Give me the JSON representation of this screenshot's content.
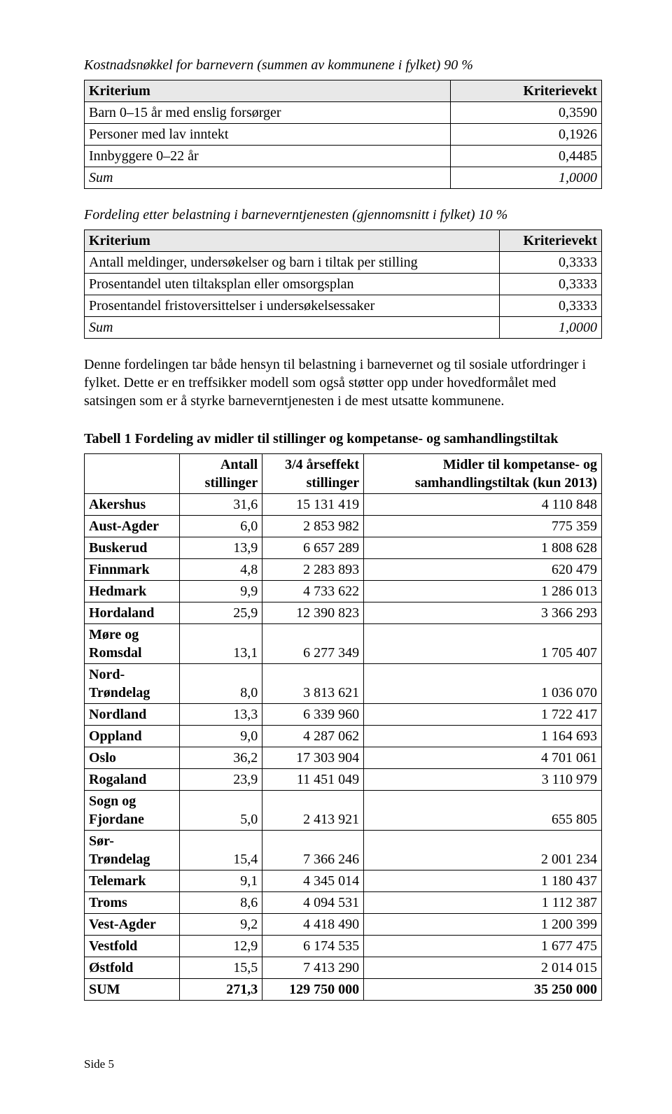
{
  "section1": {
    "heading": "Kostnadsnøkkel for barnevern (summen av kommunene i fylket) 90 %",
    "header_col1": "Kriterium",
    "header_col2": "Kriterievekt",
    "rows": [
      {
        "label": "Barn 0–15 år med enslig forsørger",
        "value": "0,3590"
      },
      {
        "label": "Personer med lav inntekt",
        "value": "0,1926"
      },
      {
        "label": "Innbyggere 0–22 år",
        "value": "0,4485"
      }
    ],
    "sum_label": "Sum",
    "sum_value": "1,0000"
  },
  "section2": {
    "heading": "Fordeling etter belastning i barneverntjenesten (gjennomsnitt i fylket) 10 %",
    "header_col1": "Kriterium",
    "header_col2": "Kriterievekt",
    "rows": [
      {
        "label": "Antall meldinger, undersøkelser og barn i tiltak per stilling",
        "value": "0,3333"
      },
      {
        "label": "Prosentandel uten tiltaksplan eller omsorgsplan",
        "value": "0,3333"
      },
      {
        "label": "Prosentandel fristoversittelser i undersøkelsessaker",
        "value": "0,3333"
      }
    ],
    "sum_label": "Sum",
    "sum_value": "1,0000"
  },
  "paragraph": "Denne fordelingen tar både hensyn til belastning i barnevernet og til sosiale utfordringer i fylket. Dette er en treffsikker modell som også støtter opp under hovedformålet med satsingen som er å styrke barneverntjenesten i de mest utsatte kommunene.",
  "table3": {
    "caption": "Tabell 1 Fordeling av midler til stillinger og kompetanse- og samhandlingstiltak",
    "headers": {
      "blank": "",
      "col1": "Antall stillinger",
      "col2": "3/4 årseffekt stillinger",
      "col3": "Midler til kompetanse- og samhandlingstiltak (kun 2013)"
    },
    "rows": [
      {
        "name": "Akershus",
        "v1": "31,6",
        "v2": "15 131 419",
        "v3": "4 110 848"
      },
      {
        "name": "Aust-Agder",
        "v1": "6,0",
        "v2": "2 853 982",
        "v3": "775 359"
      },
      {
        "name": "Buskerud",
        "v1": "13,9",
        "v2": "6 657 289",
        "v3": "1 808 628"
      },
      {
        "name": "Finnmark",
        "v1": "4,8",
        "v2": "2 283 893",
        "v3": "620 479"
      },
      {
        "name": "Hedmark",
        "v1": "9,9",
        "v2": "4 733 622",
        "v3": "1 286 013"
      },
      {
        "name": "Hordaland",
        "v1": "25,9",
        "v2": "12 390 823",
        "v3": "3 366 293"
      },
      {
        "name": "Møre og Romsdal",
        "v1": "13,1",
        "v2": "6 277 349",
        "v3": "1 705 407"
      },
      {
        "name": "Nord-Trøndelag",
        "v1": "8,0",
        "v2": "3 813 621",
        "v3": "1 036 070"
      },
      {
        "name": "Nordland",
        "v1": "13,3",
        "v2": "6 339 960",
        "v3": "1 722 417"
      },
      {
        "name": "Oppland",
        "v1": "9,0",
        "v2": "4 287 062",
        "v3": "1 164 693"
      },
      {
        "name": "Oslo",
        "v1": "36,2",
        "v2": "17 303 904",
        "v3": "4 701 061"
      },
      {
        "name": "Rogaland",
        "v1": "23,9",
        "v2": "11 451 049",
        "v3": "3 110 979"
      },
      {
        "name": "Sogn og Fjordane",
        "v1": "5,0",
        "v2": "2 413 921",
        "v3": "655 805"
      },
      {
        "name": "Sør-Trøndelag",
        "v1": "15,4",
        "v2": "7 366 246",
        "v3": "2 001 234"
      },
      {
        "name": "Telemark",
        "v1": "9,1",
        "v2": "4 345 014",
        "v3": "1 180 437"
      },
      {
        "name": "Troms",
        "v1": "8,6",
        "v2": "4 094 531",
        "v3": "1 112 387"
      },
      {
        "name": "Vest-Agder",
        "v1": "9,2",
        "v2": "4 418 490",
        "v3": "1 200 399"
      },
      {
        "name": "Vestfold",
        "v1": "12,9",
        "v2": "6 174 535",
        "v3": "1 677 475"
      },
      {
        "name": "Østfold",
        "v1": "15,5",
        "v2": "7 413 290",
        "v3": "2 014 015"
      }
    ],
    "sum": {
      "name": "SUM",
      "v1": "271,3",
      "v2": "129 750 000",
      "v3": "35 250 000"
    }
  },
  "footer": "Side 5"
}
